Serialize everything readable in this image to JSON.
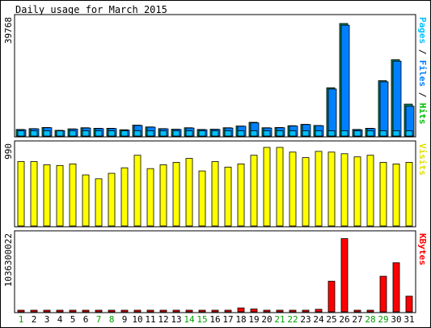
{
  "chart_data": {
    "type": "bar",
    "title": "Daily usage for March 2015",
    "categories": [
      "1",
      "2",
      "3",
      "4",
      "5",
      "6",
      "7",
      "8",
      "9",
      "10",
      "11",
      "12",
      "13",
      "14",
      "15",
      "16",
      "17",
      "18",
      "19",
      "20",
      "21",
      "22",
      "23",
      "24",
      "25",
      "26",
      "27",
      "28",
      "29",
      "30",
      "31"
    ],
    "weekend_days": [
      "1",
      "7",
      "8",
      "14",
      "15",
      "21",
      "22",
      "28",
      "29"
    ],
    "panels": [
      {
        "name": "hits-files-pages",
        "ylabel_parts": [
          {
            "text": "Pages",
            "color": "#00c0ff"
          },
          {
            "text": " / ",
            "color": "#000000"
          },
          {
            "text": "Files",
            "color": "#0080ff"
          },
          {
            "text": " / ",
            "color": "#000000"
          },
          {
            "text": "Hits",
            "color": "#00c000"
          }
        ],
        "max_label": "39768",
        "ylim": [
          0,
          39768
        ],
        "series": [
          {
            "name": "Hits",
            "color": "#00805c",
            "values": [
              2300,
              2600,
              3000,
              2000,
              2500,
              2900,
              2700,
              2700,
              2200,
              3800,
              3200,
              2600,
              2400,
              2900,
              2300,
              2400,
              2900,
              3500,
              4800,
              2900,
              3000,
              3600,
              4100,
              3700,
              16800,
              39200,
              2300,
              2700,
              19300,
              26600,
              11100
            ]
          },
          {
            "name": "Files",
            "color": "#0080ff",
            "values": [
              2200,
              2500,
              2900,
              1900,
              2400,
              2800,
              2600,
              2600,
              2100,
              3700,
              3100,
              2500,
              2300,
              2800,
              2200,
              2300,
              2800,
              3400,
              4600,
              2800,
              2900,
              3500,
              4000,
              3600,
              16400,
              38600,
              2200,
              2600,
              18900,
              26100,
              10400
            ]
          },
          {
            "name": "Pages",
            "color": "#00c0ff",
            "values": [
              1800,
              1800,
              1800,
              1800,
              1800,
              1800,
              1800,
              1800,
              1800,
              1800,
              1800,
              1800,
              1800,
              1800,
              1800,
              1800,
              1800,
              1800,
              1800,
              1800,
              1800,
              1800,
              1800,
              1800,
              1800,
              1800,
              1800,
              1800,
              1800,
              1800,
              1800
            ]
          }
        ]
      },
      {
        "name": "visits",
        "ylabel_parts": [
          {
            "text": "Visits",
            "color": "#e0e000"
          }
        ],
        "max_label": "990",
        "ylim": [
          0,
          990
        ],
        "series": [
          {
            "name": "Visits",
            "color": "#ffff00",
            "values": [
              820,
              820,
              780,
              770,
              790,
              650,
              600,
              670,
              740,
              900,
              730,
              780,
              810,
              860,
              700,
              820,
              750,
              790,
              900,
              1000,
              1000,
              940,
              870,
              950,
              940,
              920,
              880,
              900,
              810,
              790,
              810
            ]
          }
        ]
      },
      {
        "name": "kbytes",
        "ylabel_parts": [
          {
            "text": "KBytes",
            "color": "#ff0000"
          }
        ],
        "max_label": "1036300022",
        "ylim": [
          0,
          1036300022
        ],
        "series": [
          {
            "name": "KBytes",
            "color": "#ff0000",
            "values": [
              20000000,
              20000000,
              20000000,
              20000000,
              20000000,
              20000000,
              20000000,
              20000000,
              20000000,
              20000000,
              20000000,
              20000000,
              20000000,
              20000000,
              20000000,
              20000000,
              20000000,
              55000000,
              40000000,
              20000000,
              20000000,
              20000000,
              20000000,
              35000000,
              430000000,
              1030000000,
              20000000,
              20000000,
              500000000,
              690000000,
              220000000
            ]
          }
        ]
      }
    ]
  }
}
